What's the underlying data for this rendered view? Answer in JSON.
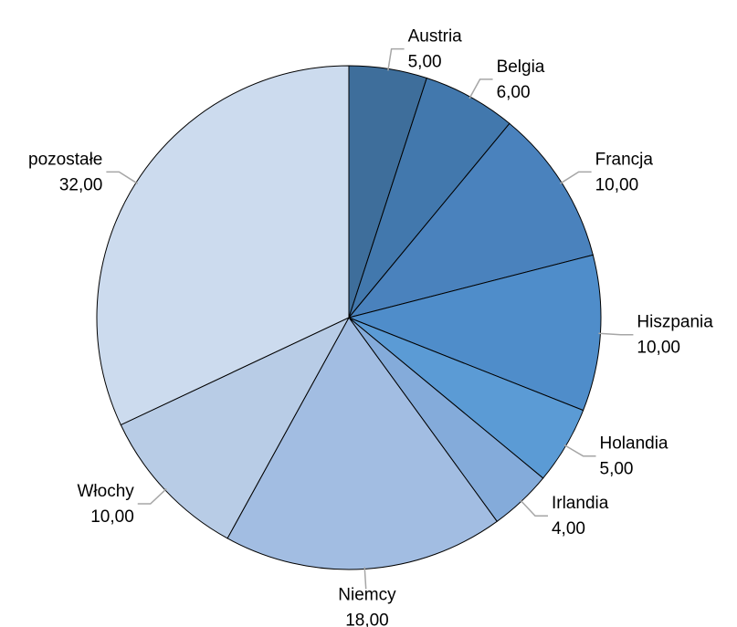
{
  "chart_data": {
    "type": "pie",
    "categories": [
      "Austria",
      "Belgia",
      "Francja",
      "Hiszpania",
      "Holandia",
      "Irlandia",
      "Niemcy",
      "Włochy",
      "pozostałe"
    ],
    "values": [
      5,
      6,
      10,
      10,
      5,
      4,
      18,
      10,
      32
    ],
    "value_labels": [
      "5,00",
      "6,00",
      "10,00",
      "10,00",
      "5,00",
      "4,00",
      "18,00",
      "10,00",
      "32,00"
    ],
    "colors": [
      "#3e6e9b",
      "#4278ad",
      "#4a82bd",
      "#4f8dca",
      "#5b9bd5",
      "#84abda",
      "#a2bde2",
      "#b8cce6",
      "#ccdbee"
    ]
  }
}
